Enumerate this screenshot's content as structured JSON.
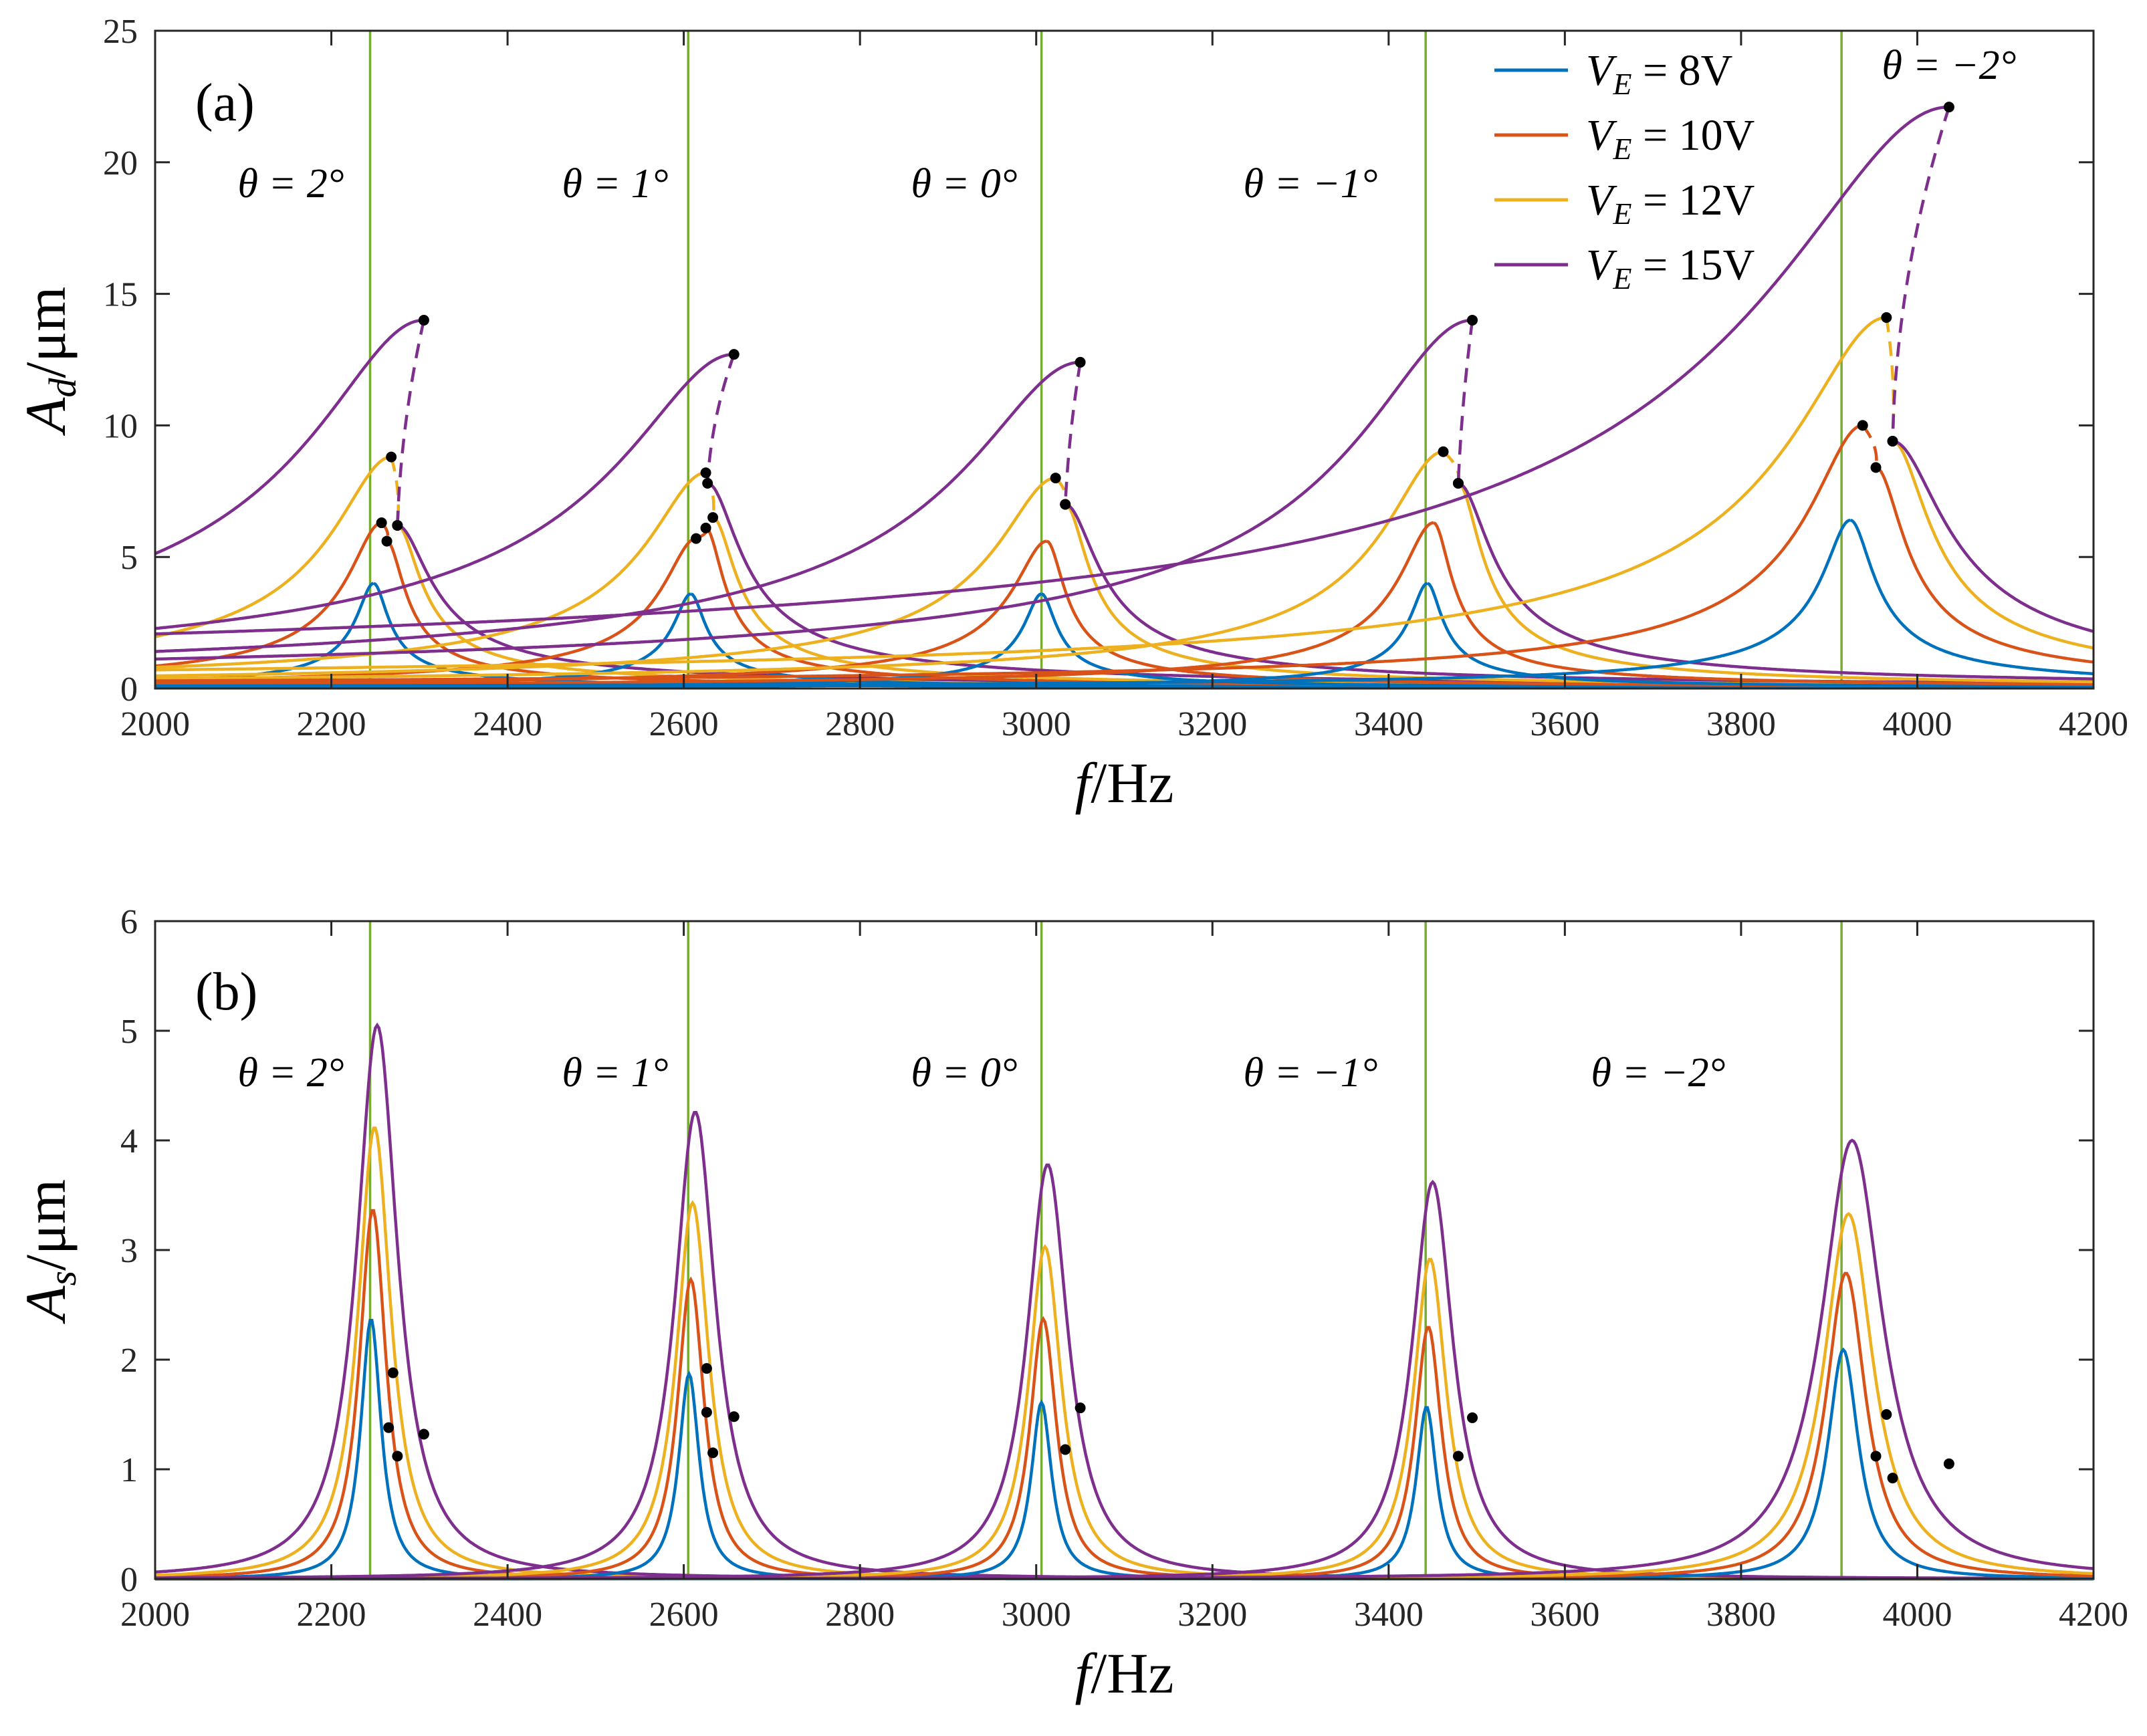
{
  "figure": {
    "panels": [
      "(a)",
      "(b)"
    ]
  },
  "colors": {
    "V8": "#0072BD",
    "V10": "#D95319",
    "V12": "#EDB120",
    "V15": "#7E2F8E",
    "resonance_line": "#77AC30",
    "bifurcation_point": "#000000"
  },
  "legend": [
    {
      "key": "V8",
      "prefix": "V",
      "sub": "E",
      "value": " = 8V"
    },
    {
      "key": "V10",
      "prefix": "V",
      "sub": "E",
      "value": " = 10V"
    },
    {
      "key": "V12",
      "prefix": "V",
      "sub": "E",
      "value": " = 12V"
    },
    {
      "key": "V15",
      "prefix": "V",
      "sub": "E",
      "value": " = 15V"
    }
  ],
  "theta_labels": [
    "θ = 2°",
    "θ = 1°",
    "θ = 0°",
    "θ = −1°",
    "θ = −2°"
  ],
  "chart_data": [
    {
      "type": "line",
      "panel": "(a)",
      "xlabel_var": "f",
      "xlabel_unit": "/Hz",
      "ylabel_var": "A",
      "ylabel_sub": "d",
      "ylabel_unit": "/μm",
      "xlim": [
        2000,
        4200
      ],
      "ylim": [
        0,
        25
      ],
      "xticks": [
        2000,
        2200,
        2400,
        2600,
        2800,
        3000,
        3200,
        3400,
        3600,
        3800,
        4000,
        4200
      ],
      "yticks": [
        0,
        5,
        10,
        15,
        20,
        25
      ],
      "resonance_lines": [
        2244,
        2605,
        3006,
        3442,
        3914
      ],
      "groups": [
        {
          "theta": "2°",
          "f0": 2244,
          "peaks": [
            {
              "series": "V8",
              "f": 2248,
              "A": 4.0
            },
            {
              "series": "V10",
              "f": 2257,
              "A": 6.3,
              "jump_to": 5.6,
              "jump_f": 2263
            },
            {
              "series": "V12",
              "f": 2268,
              "A": 8.8,
              "jump_to": 6.2,
              "jump_f": 2275
            },
            {
              "series": "V15",
              "f": 2305,
              "A": 14.0,
              "jump_to": 6.2,
              "jump_f": 2275
            }
          ]
        },
        {
          "theta": "1°",
          "f0": 2605,
          "peaks": [
            {
              "series": "V8",
              "f": 2608,
              "A": 3.6
            },
            {
              "series": "V10",
              "f": 2614,
              "A": 5.7,
              "jump_to": 6.1,
              "jump_f": 2625
            },
            {
              "series": "V12",
              "f": 2625,
              "A": 8.2,
              "jump_to": 6.5,
              "jump_f": 2633
            },
            {
              "series": "V15",
              "f": 2657,
              "A": 12.7,
              "jump_to": 7.8,
              "jump_f": 2627
            }
          ]
        },
        {
          "theta": "0°",
          "f0": 3006,
          "peaks": [
            {
              "series": "V8",
              "f": 3006,
              "A": 3.6
            },
            {
              "series": "V10",
              "f": 3012,
              "A": 5.6
            },
            {
              "series": "V12",
              "f": 3022,
              "A": 8.0,
              "jump_to": 7.0,
              "jump_f": 3033
            },
            {
              "series": "V15",
              "f": 3050,
              "A": 12.4,
              "jump_to": 7.0,
              "jump_f": 3033
            }
          ]
        },
        {
          "theta": "−1°",
          "f0": 3442,
          "peaks": [
            {
              "series": "V8",
              "f": 3444,
              "A": 4.0
            },
            {
              "series": "V10",
              "f": 3451,
              "A": 6.3
            },
            {
              "series": "V12",
              "f": 3462,
              "A": 9.0,
              "jump_to": 7.8,
              "jump_f": 3479
            },
            {
              "series": "V15",
              "f": 3495,
              "A": 14.0,
              "jump_to": 7.8,
              "jump_f": 3479
            }
          ]
        },
        {
          "theta": "−2°",
          "f0": 3914,
          "peaks": [
            {
              "series": "V8",
              "f": 3924,
              "A": 6.4
            },
            {
              "series": "V10",
              "f": 3938,
              "A": 10.0,
              "jump_to": 8.4,
              "jump_f": 3953
            },
            {
              "series": "V12",
              "f": 3965,
              "A": 14.1,
              "jump_to": 9.4,
              "jump_f": 3972
            },
            {
              "series": "V15",
              "f": 4036,
              "A": 22.1,
              "jump_to": 9.4,
              "jump_f": 3972
            }
          ]
        }
      ]
    },
    {
      "type": "line",
      "panel": "(b)",
      "xlabel_var": "f",
      "xlabel_unit": "/Hz",
      "ylabel_var": "A",
      "ylabel_sub": "s",
      "ylabel_unit": "/μm",
      "xlim": [
        2000,
        4200
      ],
      "ylim": [
        0,
        6
      ],
      "xticks": [
        2000,
        2200,
        2400,
        2600,
        2800,
        3000,
        3200,
        3400,
        3600,
        3800,
        4000,
        4200
      ],
      "yticks": [
        0,
        1,
        2,
        3,
        4,
        5,
        6
      ],
      "resonance_lines": [
        2244,
        2605,
        3006,
        3442,
        3914
      ],
      "groups": [
        {
          "theta": "2°",
          "f0": 2244,
          "peaks": [
            {
              "series": "V8",
              "f": 2245,
              "A": 2.37
            },
            {
              "series": "V10",
              "f": 2247,
              "A": 3.37
            },
            {
              "series": "V12",
              "f": 2249,
              "A": 4.12
            },
            {
              "series": "V15",
              "f": 2252,
              "A": 5.05
            }
          ],
          "points": [
            [
              2270,
              1.88
            ],
            [
              2265,
              1.38
            ],
            [
              2275,
              1.12
            ],
            [
              2305,
              1.32
            ]
          ]
        },
        {
          "theta": "1°",
          "f0": 2605,
          "peaks": [
            {
              "series": "V8",
              "f": 2606,
              "A": 1.87
            },
            {
              "series": "V10",
              "f": 2608,
              "A": 2.73
            },
            {
              "series": "V12",
              "f": 2610,
              "A": 3.43
            },
            {
              "series": "V15",
              "f": 2613,
              "A": 4.26
            }
          ],
          "points": [
            [
              2626,
              1.92
            ],
            [
              2626,
              1.52
            ],
            [
              2633,
              1.15
            ],
            [
              2657,
              1.48
            ]
          ]
        },
        {
          "theta": "0°",
          "f0": 3006,
          "peaks": [
            {
              "series": "V8",
              "f": 3006,
              "A": 1.61
            },
            {
              "series": "V10",
              "f": 3008,
              "A": 2.37
            },
            {
              "series": "V12",
              "f": 3010,
              "A": 3.03
            },
            {
              "series": "V15",
              "f": 3013,
              "A": 3.78
            }
          ],
          "points": [
            [
              3033,
              1.18
            ],
            [
              3050,
              1.56
            ]
          ]
        },
        {
          "theta": "−1°",
          "f0": 3442,
          "peaks": [
            {
              "series": "V8",
              "f": 3443,
              "A": 1.57
            },
            {
              "series": "V10",
              "f": 3445,
              "A": 2.3
            },
            {
              "series": "V12",
              "f": 3447,
              "A": 2.92
            },
            {
              "series": "V15",
              "f": 3450,
              "A": 3.62
            }
          ],
          "points": [
            [
              3479,
              1.12
            ],
            [
              3495,
              1.47
            ]
          ]
        },
        {
          "theta": "−2°",
          "f0": 3914,
          "peaks": [
            {
              "series": "V8",
              "f": 3916,
              "A": 2.09
            },
            {
              "series": "V10",
              "f": 3919,
              "A": 2.79
            },
            {
              "series": "V12",
              "f": 3922,
              "A": 3.33
            },
            {
              "series": "V15",
              "f": 3926,
              "A": 4.0
            }
          ],
          "points": [
            [
              3965,
              1.5
            ],
            [
              3953,
              1.12
            ],
            [
              3972,
              0.92
            ],
            [
              4036,
              1.05
            ]
          ]
        }
      ]
    }
  ]
}
